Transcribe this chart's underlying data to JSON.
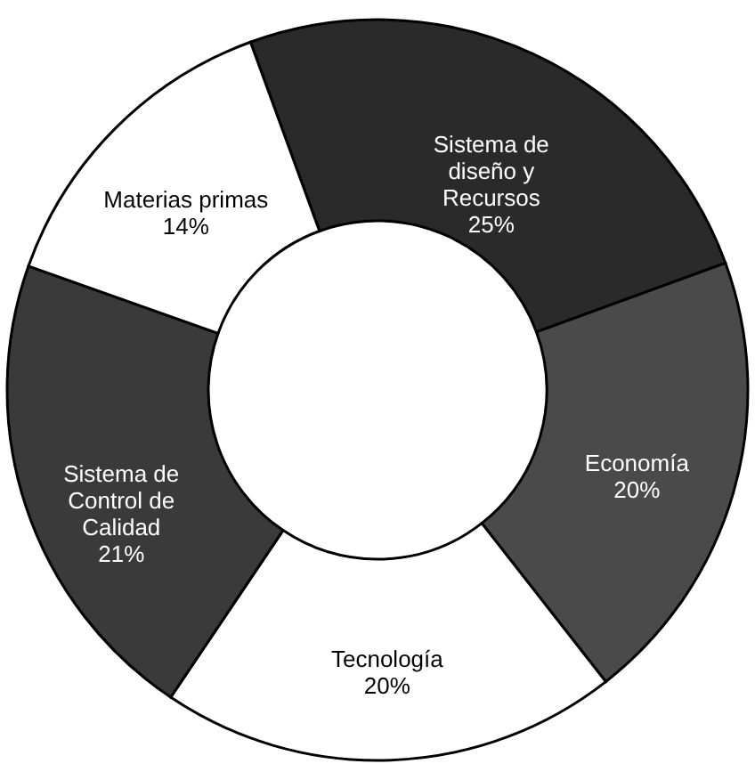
{
  "chart_data": {
    "type": "donut",
    "categories": [
      "Sistema de diseño y Recursos",
      "Economía",
      "Tecnología",
      "Sistema de Control de Calidad",
      "Materias primas"
    ],
    "values": [
      25,
      20,
      20,
      21,
      14
    ],
    "value_labels": [
      "25%",
      "20%",
      "20%",
      "21%",
      "14%"
    ],
    "colors": [
      "#2a2a2a",
      "#4a4a4a",
      "#ffffff",
      "#3a3a3a",
      "#ffffff"
    ],
    "legend": false
  }
}
